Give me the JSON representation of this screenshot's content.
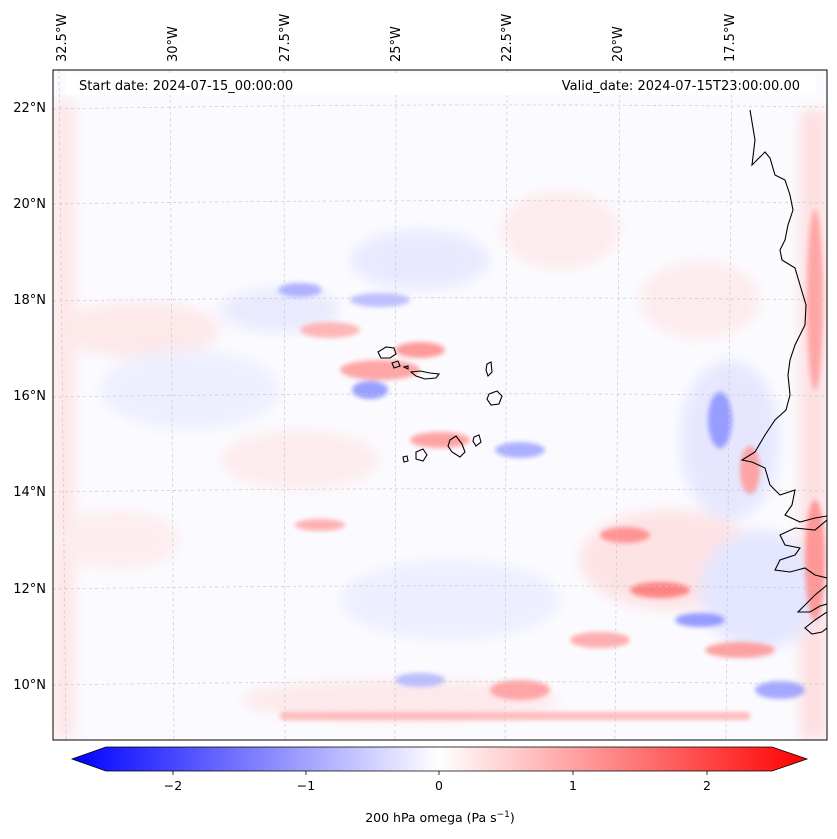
{
  "header": {
    "start_date": "Start date: 2024-07-15_00:00:00",
    "valid_date": "Valid_date: 2024-07-15T23:00:00.00"
  },
  "longitude_labels": [
    "32.5°W",
    "30°W",
    "27.5°W",
    "25°W",
    "22.5°W",
    "20°W",
    "17.5°W"
  ],
  "latitude_labels": [
    "22°N",
    "20°N",
    "18°N",
    "16°N",
    "14°N",
    "12°N",
    "10°N"
  ],
  "colorbar": {
    "ticks": [
      "−2",
      "−1",
      "0",
      "1",
      "2"
    ],
    "label_main": "200 hPa omega (Pa s",
    "label_sup": "−1",
    "label_end": ")",
    "min": -2.7,
    "max": 2.7,
    "colors": {
      "negative": "#0000ff",
      "zero": "#ffffff",
      "positive": "#ff0000"
    }
  },
  "map": {
    "field": "200 hPa omega",
    "colormap": "bwr",
    "coastline_color": "#000000",
    "grid_color": "#c8c8c8"
  }
}
